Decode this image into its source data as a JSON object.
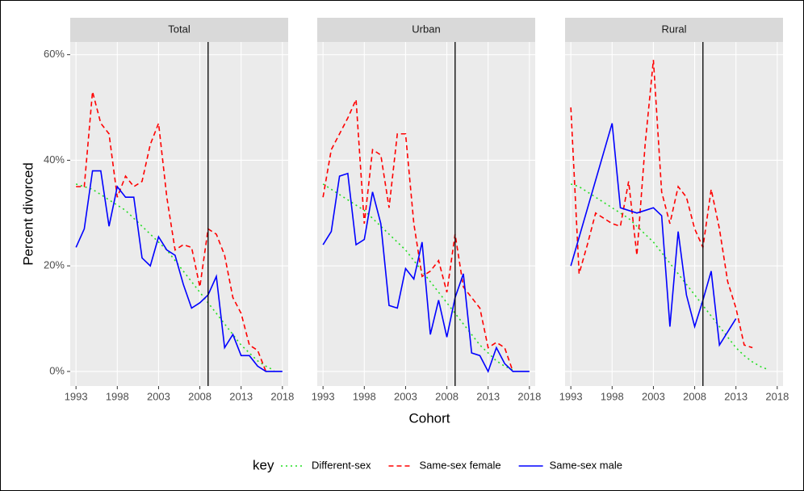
{
  "chart_data": [
    {
      "type": "line",
      "title": "Total",
      "y_label": "Percent divorced",
      "legend_title": "key",
      "xlim": [
        1992.3,
        2018.7
      ],
      "ylim": [
        -2.76,
        62.4
      ],
      "xticks": [
        1993,
        1998,
        2003,
        2008,
        2013,
        2018
      ],
      "yticks": [
        {
          "value": 0,
          "label": "0%"
        },
        {
          "value": 20,
          "label": "20%"
        },
        {
          "value": 40,
          "label": "40%"
        },
        {
          "value": 60,
          "label": "60%"
        }
      ],
      "vline": 2009,
      "series": [
        {
          "name": "Different-sex",
          "color": "#22dd22",
          "style": "dotted",
          "x": [
            1993,
            1994,
            1995,
            1996,
            1997,
            1998,
            1999,
            2000,
            2001,
            2002,
            2003,
            2004,
            2005,
            2006,
            2007,
            2008,
            2009,
            2010,
            2011,
            2012,
            2013,
            2014,
            2015,
            2016,
            2017
          ],
          "values": [
            35.5,
            35,
            34.5,
            33.5,
            32.5,
            31.5,
            30.5,
            29,
            27.5,
            26,
            24.5,
            23,
            21,
            19,
            17,
            15,
            13,
            11,
            9,
            7,
            5,
            3.5,
            2,
            1,
            0.2
          ]
        },
        {
          "name": "Same-sex female",
          "color": "#ff0000",
          "style": "dashed",
          "x": [
            1993,
            1994,
            1995,
            1996,
            1997,
            1998,
            1999,
            2000,
            2001,
            2002,
            2003,
            2004,
            2005,
            2006,
            2007,
            2008,
            2009,
            2010,
            2011,
            2012,
            2013,
            2014,
            2015,
            2016
          ],
          "values": [
            35,
            35,
            53,
            47,
            45,
            33,
            37,
            35,
            36,
            43,
            47,
            33,
            23,
            24,
            23.5,
            16,
            27,
            26,
            22,
            14,
            11,
            5,
            4,
            0
          ]
        },
        {
          "name": "Same-sex male",
          "color": "#0000ff",
          "style": "solid",
          "x": [
            1993,
            1994,
            1995,
            1996,
            1997,
            1998,
            1999,
            2000,
            2001,
            2002,
            2003,
            2004,
            2005,
            2006,
            2007,
            2008,
            2009,
            2010,
            2011,
            2012,
            2013,
            2014,
            2015,
            2016,
            2017,
            2018
          ],
          "values": [
            23.5,
            27,
            38,
            38,
            27.5,
            35,
            33,
            33,
            21.5,
            20,
            25.5,
            23,
            22,
            16.5,
            12,
            13,
            14.5,
            18,
            4.5,
            7,
            3,
            3,
            1,
            0,
            0,
            0
          ]
        }
      ]
    },
    {
      "type": "line",
      "title": "Urban",
      "x_label": "Cohort",
      "xlim": [
        1992.3,
        2018.7
      ],
      "ylim": [
        -2.76,
        62.4
      ],
      "xticks": [
        1993,
        1998,
        2003,
        2008,
        2013,
        2018
      ],
      "vline": 2009,
      "series": [
        {
          "color": "#22dd22",
          "style": "dotted",
          "x": [
            1993,
            1994,
            1995,
            1996,
            1997,
            1998,
            1999,
            2000,
            2001,
            2002,
            2003,
            2004,
            2005,
            2006,
            2007,
            2008,
            2009,
            2010,
            2011,
            2012,
            2013,
            2014,
            2015,
            2016
          ],
          "values": [
            35.5,
            34.5,
            33.5,
            32.5,
            31.5,
            30.5,
            29,
            27.5,
            26,
            24.5,
            23,
            21,
            19,
            17,
            15,
            13,
            11,
            9,
            7,
            5,
            3.5,
            2,
            1,
            0.3
          ]
        },
        {
          "color": "#ff0000",
          "style": "dashed",
          "x": [
            1993,
            1994,
            1995,
            1996,
            1997,
            1998,
            1999,
            2000,
            2001,
            2002,
            2003,
            2004,
            2005,
            2006,
            2007,
            2008,
            2009,
            2010,
            2011,
            2012,
            2013,
            2014,
            2015,
            2016
          ],
          "values": [
            33,
            42,
            45,
            48,
            51.5,
            28,
            42,
            41,
            31,
            45,
            45,
            28,
            18,
            19,
            21,
            15,
            26,
            16,
            14,
            12,
            4.5,
            5.5,
            4.5,
            0
          ]
        },
        {
          "color": "#0000ff",
          "style": "solid",
          "x": [
            1993,
            1994,
            1995,
            1996,
            1997,
            1998,
            1999,
            2000,
            2001,
            2002,
            2003,
            2004,
            2005,
            2006,
            2007,
            2008,
            2009,
            2010,
            2011,
            2012,
            2013,
            2014,
            2015,
            2016,
            2017,
            2018
          ],
          "values": [
            24,
            26.5,
            37,
            37.5,
            24,
            25,
            34,
            28,
            12.5,
            12,
            19.5,
            17.5,
            24.5,
            7,
            13.5,
            6.5,
            14,
            18.5,
            3.5,
            3,
            0,
            4.5,
            1.5,
            0,
            0,
            0
          ]
        }
      ]
    },
    {
      "type": "line",
      "title": "Rural",
      "xlim": [
        1992.3,
        2018.7
      ],
      "ylim": [
        -2.76,
        62.4
      ],
      "xticks": [
        1993,
        1998,
        2003,
        2008,
        2013,
        2018
      ],
      "vline": 2009,
      "series": [
        {
          "color": "#22dd22",
          "style": "dotted",
          "x": [
            1993,
            1994,
            1995,
            1996,
            1997,
            1998,
            1999,
            2000,
            2001,
            2002,
            2003,
            2004,
            2005,
            2006,
            2007,
            2008,
            2009,
            2010,
            2011,
            2012,
            2013,
            2014,
            2015,
            2016,
            2017
          ],
          "values": [
            35.5,
            35,
            34,
            33,
            32,
            31,
            30,
            29,
            27.5,
            26,
            24.5,
            22.5,
            20.5,
            18.5,
            16.5,
            14.5,
            12.5,
            10.5,
            8.5,
            6.5,
            4.5,
            3,
            1.8,
            0.9,
            0.3
          ]
        },
        {
          "color": "#ff0000",
          "style": "dashed",
          "x": [
            1993,
            1994,
            1995,
            1996,
            1997,
            1998,
            1999,
            2000,
            2001,
            2002,
            2003,
            2004,
            2005,
            2006,
            2007,
            2008,
            2009,
            2010,
            2011,
            2012,
            2013,
            2014,
            2015
          ],
          "values": [
            50,
            18.5,
            24,
            30,
            29,
            28,
            27.5,
            36,
            22,
            43,
            59,
            34,
            28,
            35,
            33,
            27,
            23.5,
            34.5,
            27,
            17,
            12,
            5,
            4.5
          ]
        },
        {
          "color": "#0000ff",
          "style": "solid",
          "x": [
            1993,
            1998,
            1999,
            2000,
            2001,
            2002,
            2003,
            2004,
            2005,
            2006,
            2007,
            2008,
            2009,
            2010,
            2011,
            2012,
            2013
          ],
          "values": [
            20,
            47,
            31,
            30.5,
            30,
            30.5,
            31,
            29.5,
            8.5,
            26.5,
            14.5,
            8.5,
            13.5,
            19,
            5,
            7.5,
            10
          ]
        }
      ]
    }
  ]
}
